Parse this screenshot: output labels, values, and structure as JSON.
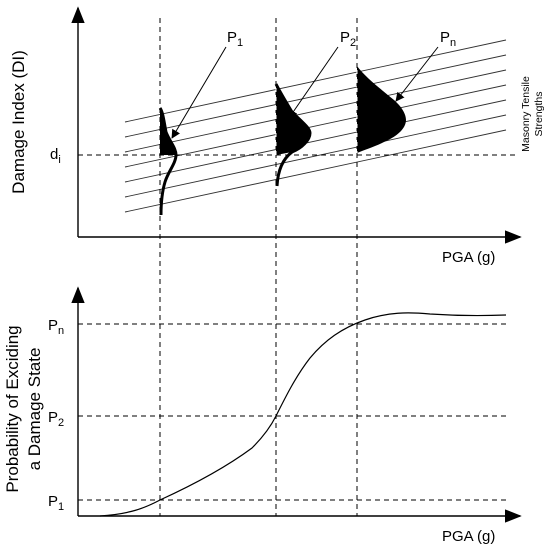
{
  "top_panel": {
    "y_axis_label": "Damage Index (DI)",
    "x_axis_label": "PGA (g)",
    "threshold_label": {
      "base": "d",
      "sub": "i"
    },
    "curve_labels": [
      {
        "base": "P",
        "sub": "1"
      },
      {
        "base": "P",
        "sub": "2"
      },
      {
        "base": "P",
        "sub": "n"
      }
    ],
    "band_note_line1": "Masonry Tensile",
    "band_note_line2": "Strengths"
  },
  "bottom_panel": {
    "y_axis_label_line1": "Probability of Exciding",
    "y_axis_label_line2": "a Damage State",
    "x_axis_label": "PGA (g)",
    "y_ticks": [
      {
        "base": "P",
        "sub": "n"
      },
      {
        "base": "P",
        "sub": "2"
      },
      {
        "base": "P",
        "sub": "1"
      }
    ]
  }
}
